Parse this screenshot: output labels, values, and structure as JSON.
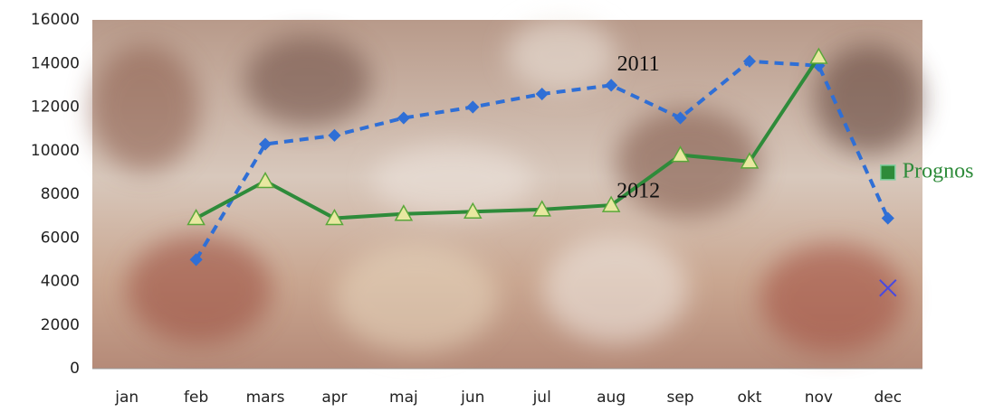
{
  "chart_data": {
    "type": "line",
    "categories": [
      "jan",
      "feb",
      "mars",
      "apr",
      "maj",
      "jun",
      "jul",
      "aug",
      "sep",
      "okt",
      "nov",
      "dec"
    ],
    "series": [
      {
        "name": "2011",
        "color": "#2f6fd6",
        "values": [
          null,
          5000,
          10300,
          10700,
          11500,
          12000,
          12600,
          13000,
          11500,
          14100,
          13900,
          6900
        ]
      },
      {
        "name": "2012",
        "color": "#2e8b3a",
        "values": [
          null,
          6900,
          8600,
          6900,
          7100,
          7200,
          7300,
          7500,
          9800,
          9500,
          14300,
          null
        ]
      },
      {
        "name": "Prognos",
        "color": "#2e8b3a",
        "values": [
          null,
          null,
          null,
          null,
          null,
          null,
          null,
          null,
          null,
          null,
          null,
          9000
        ]
      },
      {
        "color": "#4a4adf",
        "values": [
          null,
          null,
          null,
          null,
          null,
          null,
          null,
          null,
          null,
          null,
          null,
          3700
        ]
      }
    ],
    "ylim": [
      0,
      16000
    ],
    "yticks": [
      0,
      2000,
      4000,
      6000,
      8000,
      10000,
      12000,
      14000,
      16000
    ],
    "grid": false
  }
}
